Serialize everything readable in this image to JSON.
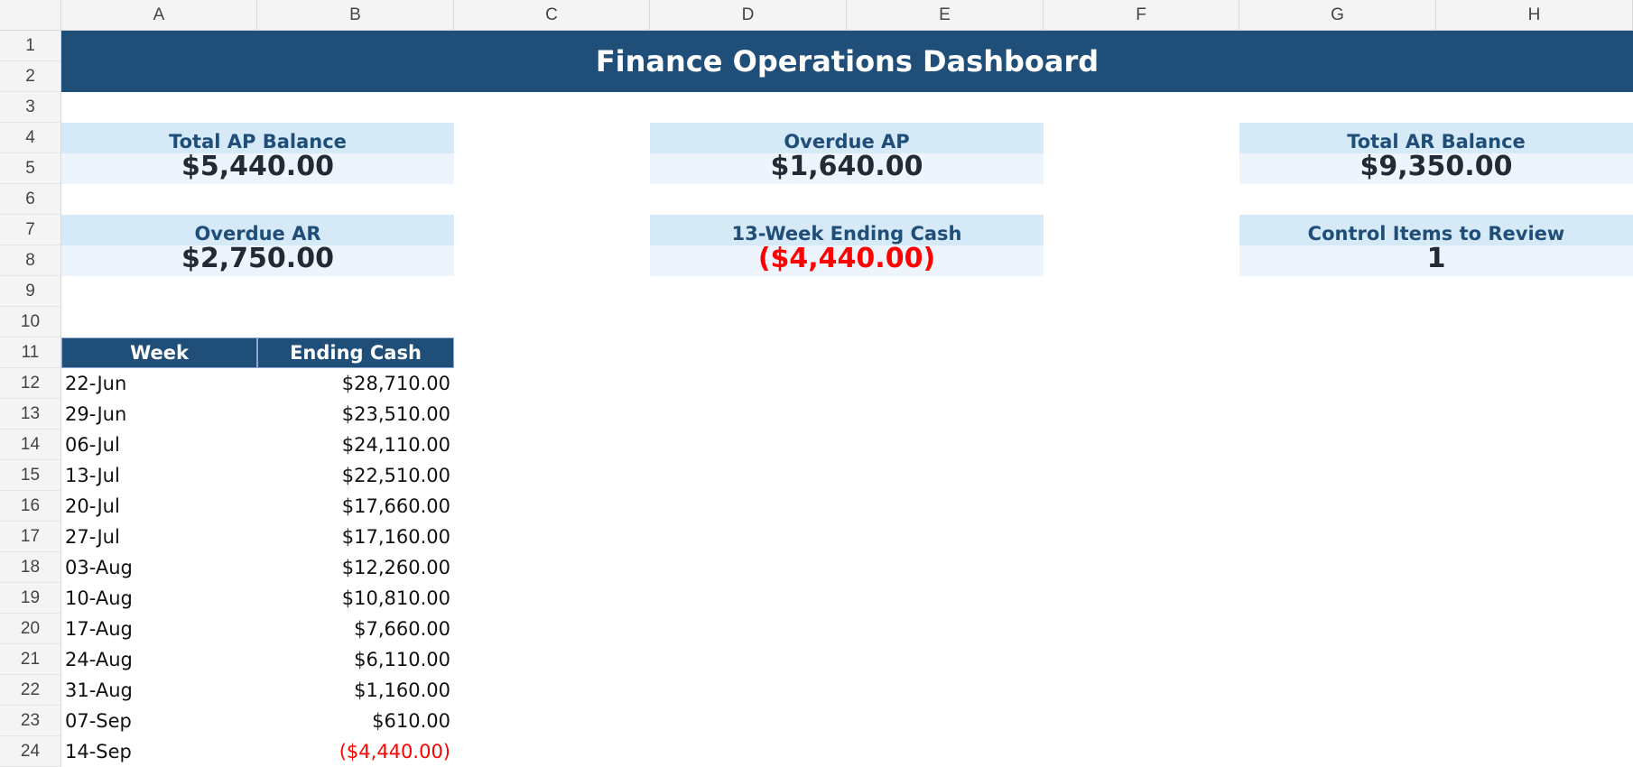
{
  "columns": [
    "A",
    "B",
    "C",
    "D",
    "E",
    "F",
    "G",
    "H"
  ],
  "rows": [
    "1",
    "2",
    "3",
    "4",
    "5",
    "6",
    "7",
    "8",
    "9",
    "10",
    "11",
    "12",
    "13",
    "14",
    "15",
    "16",
    "17",
    "18",
    "19",
    "20",
    "21",
    "22",
    "23",
    "24"
  ],
  "title": "Finance Operations Dashboard",
  "kpis": [
    {
      "label": "Total AP Balance",
      "value": "$5,440.00"
    },
    {
      "label": "Overdue AP",
      "value": "$1,640.00"
    },
    {
      "label": "Total AR Balance",
      "value": "$9,350.00"
    },
    {
      "label": "Overdue AR",
      "value": "$2,750.00"
    },
    {
      "label": "13-Week Ending Cash",
      "value": "($4,440.00)"
    },
    {
      "label": "Control Items to Review",
      "value": "1"
    }
  ],
  "table": {
    "headers": {
      "week": "Week",
      "cash": "Ending Cash"
    },
    "rows": [
      {
        "week": "22-Jun",
        "cash": "$28,710.00"
      },
      {
        "week": "29-Jun",
        "cash": "$23,510.00"
      },
      {
        "week": "06-Jul",
        "cash": "$24,110.00"
      },
      {
        "week": "13-Jul",
        "cash": "$22,510.00"
      },
      {
        "week": "20-Jul",
        "cash": "$17,660.00"
      },
      {
        "week": "27-Jul",
        "cash": "$17,160.00"
      },
      {
        "week": "03-Aug",
        "cash": "$12,260.00"
      },
      {
        "week": "10-Aug",
        "cash": "$10,810.00"
      },
      {
        "week": "17-Aug",
        "cash": "$7,660.00"
      },
      {
        "week": "24-Aug",
        "cash": "$6,110.00"
      },
      {
        "week": "31-Aug",
        "cash": "$1,160.00"
      },
      {
        "week": "07-Sep",
        "cash": "$610.00"
      },
      {
        "week": "14-Sep",
        "cash": "($4,440.00)"
      }
    ]
  },
  "colors": {
    "header_blue": "#1f4e79",
    "label_bg": "#d6e9f7",
    "value_bg": "#eef4fb",
    "negative": "#ff0000"
  }
}
